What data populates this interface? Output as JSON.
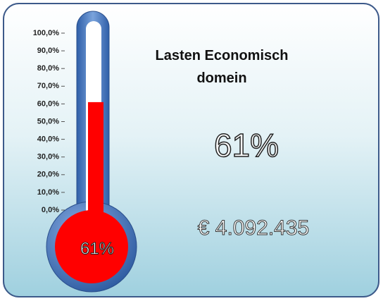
{
  "chart_data": {
    "type": "thermometer",
    "title": "Lasten Economisch domein",
    "values": [
      61
    ],
    "value_labels": [
      "61%"
    ],
    "color": "#ff0000",
    "ylim": [
      0,
      100
    ],
    "yticks": [
      {
        "value": 0,
        "label": "0,0%"
      },
      {
        "value": 10,
        "label": "10,0%"
      },
      {
        "value": 20,
        "label": "20,0%"
      },
      {
        "value": 30,
        "label": "30,0%"
      },
      {
        "value": 40,
        "label": "40,0%"
      },
      {
        "value": 50,
        "label": "50,0%"
      },
      {
        "value": 60,
        "label": "60,0%"
      },
      {
        "value": 70,
        "label": "70,0%"
      },
      {
        "value": 80,
        "label": "80,0%"
      },
      {
        "value": 90,
        "label": "90,0%"
      },
      {
        "value": 100,
        "label": "100,0%"
      }
    ],
    "annotations": [
      "€ 4.092.435"
    ]
  }
}
